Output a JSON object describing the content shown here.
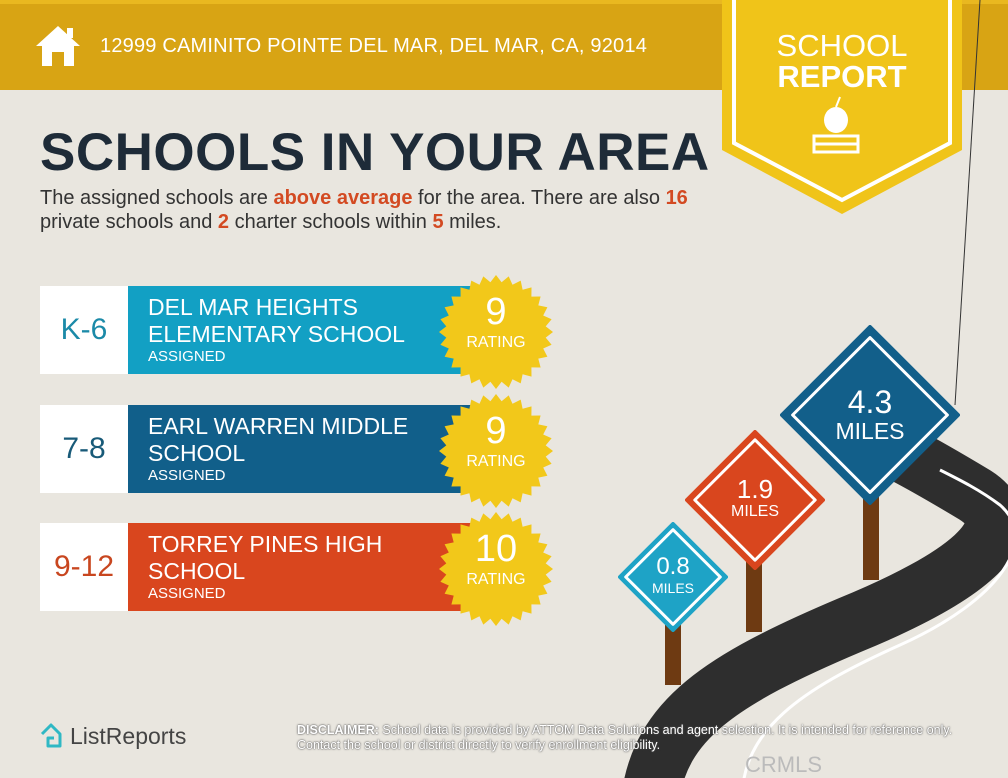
{
  "header": {
    "address": "12999 CAMINITO POINTE DEL MAR, DEL MAR, CA, 92014",
    "icon": "house-icon",
    "color": "#d8a414"
  },
  "badge": {
    "line1": "SCHOOL",
    "line2": "REPORT",
    "icon": "apple-on-books-icon",
    "color": "#f0c419"
  },
  "title": "SCHOOLS IN YOUR AREA",
  "intro": {
    "p1": "The assigned schools are ",
    "h1": "above average",
    "p2": " for the area. There are also ",
    "h2": "16",
    "p3": " private schools and ",
    "h3": "2",
    "p4": " charter schools within ",
    "h4": "5",
    "p5": " miles."
  },
  "schools": [
    {
      "grades": "K-6",
      "name": "DEL MAR HEIGHTS ELEMENTARY SCHOOL",
      "status": "ASSIGNED",
      "rating": "9",
      "rating_label": "RATING",
      "color": "#12a0c4",
      "grade_color": "#1b8aa8"
    },
    {
      "grades": "7-8",
      "name": "EARL WARREN MIDDLE SCHOOL",
      "status": "ASSIGNED",
      "rating": "9",
      "rating_label": "RATING",
      "color": "#115f8a",
      "grade_color": "#185a78"
    },
    {
      "grades": "9-12",
      "name": "TORREY PINES HIGH SCHOOL",
      "status": "ASSIGNED",
      "rating": "10",
      "rating_label": "RATING",
      "color": "#d9461e",
      "grade_color": "#c8461f"
    }
  ],
  "signs": [
    {
      "distance": "0.8",
      "unit": "MILES",
      "color": "#1ea3c6"
    },
    {
      "distance": "1.9",
      "unit": "MILES",
      "color": "#d9461e"
    },
    {
      "distance": "4.3",
      "unit": "MILES",
      "color": "#125f8a"
    }
  ],
  "footer": {
    "logo": "ListReports",
    "disclaimer_label": "DISCLAIMER:",
    "disclaimer": " School data is provided by ATTOM Data Solutions and agent selection. It is intended for reference only. Contact the school or district directly to verify enrollment eligibility.",
    "watermark": "CRMLS"
  }
}
